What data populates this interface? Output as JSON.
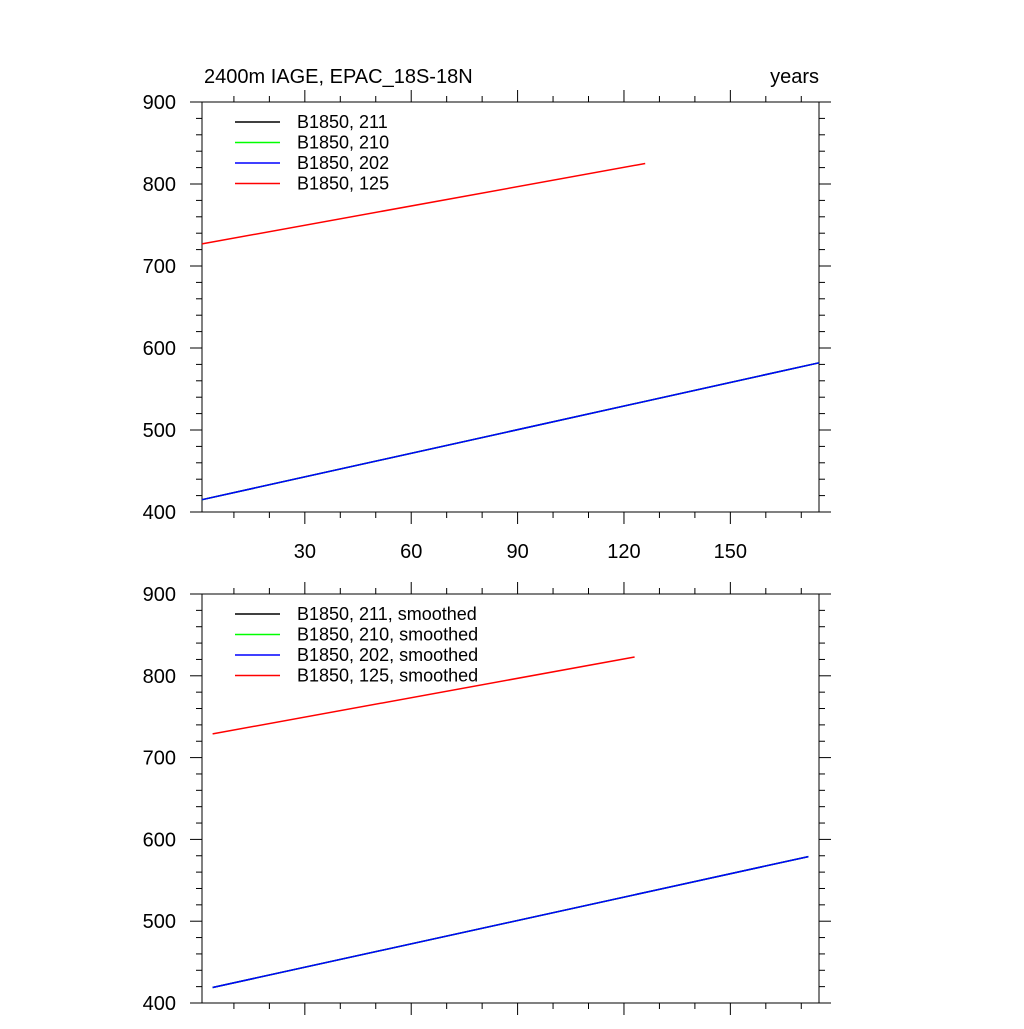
{
  "chart_data": [
    {
      "type": "line",
      "title": "2400m IAGE, EPAC_18S-18N",
      "title_right": "years",
      "xlim": [
        1,
        175
      ],
      "ylim": [
        400,
        900
      ],
      "xticks": [
        30,
        60,
        90,
        120,
        150
      ],
      "xtick_labels": [
        "30",
        "60",
        "90",
        "120",
        "150"
      ],
      "yticks": [
        400,
        500,
        600,
        700,
        800,
        900
      ],
      "ytick_labels": [
        "400",
        "500",
        "600",
        "700",
        "800",
        "900"
      ],
      "show_x_tick_labels": true,
      "legend_position": "top-left",
      "series": [
        {
          "name": "B1850, 211",
          "color": "#000000",
          "x": [
            1,
            175
          ],
          "y": [
            415,
            582
          ]
        },
        {
          "name": "B1850, 210",
          "color": "#00ff00",
          "x": [
            1,
            175
          ],
          "y": [
            415,
            582
          ]
        },
        {
          "name": "B1850, 202",
          "color": "#0000ff",
          "x": [
            1,
            175
          ],
          "y": [
            415,
            582
          ]
        },
        {
          "name": "B1850, 125",
          "color": "#ff0000",
          "x": [
            1,
            126
          ],
          "y": [
            727,
            825
          ]
        }
      ]
    },
    {
      "type": "line",
      "title": "",
      "title_right": "",
      "xlim": [
        1,
        175
      ],
      "ylim": [
        400,
        900
      ],
      "xticks": [
        30,
        60,
        90,
        120,
        150
      ],
      "xtick_labels": [
        "30",
        "60",
        "90",
        "120",
        "150"
      ],
      "yticks": [
        400,
        500,
        600,
        700,
        800,
        900
      ],
      "ytick_labels": [
        "400",
        "500",
        "600",
        "700",
        "800",
        "900"
      ],
      "show_x_tick_labels": false,
      "legend_position": "top-left",
      "series": [
        {
          "name": "B1850, 211, smoothed",
          "color": "#000000",
          "x": [
            4,
            172
          ],
          "y": [
            419,
            579
          ]
        },
        {
          "name": "B1850, 210, smoothed",
          "color": "#00ff00",
          "x": [
            4,
            172
          ],
          "y": [
            419,
            579
          ]
        },
        {
          "name": "B1850, 202, smoothed",
          "color": "#0000ff",
          "x": [
            4,
            172
          ],
          "y": [
            419,
            579
          ]
        },
        {
          "name": "B1850, 125, smoothed",
          "color": "#ff0000",
          "x": [
            4,
            123
          ],
          "y": [
            729,
            823
          ]
        }
      ]
    }
  ]
}
